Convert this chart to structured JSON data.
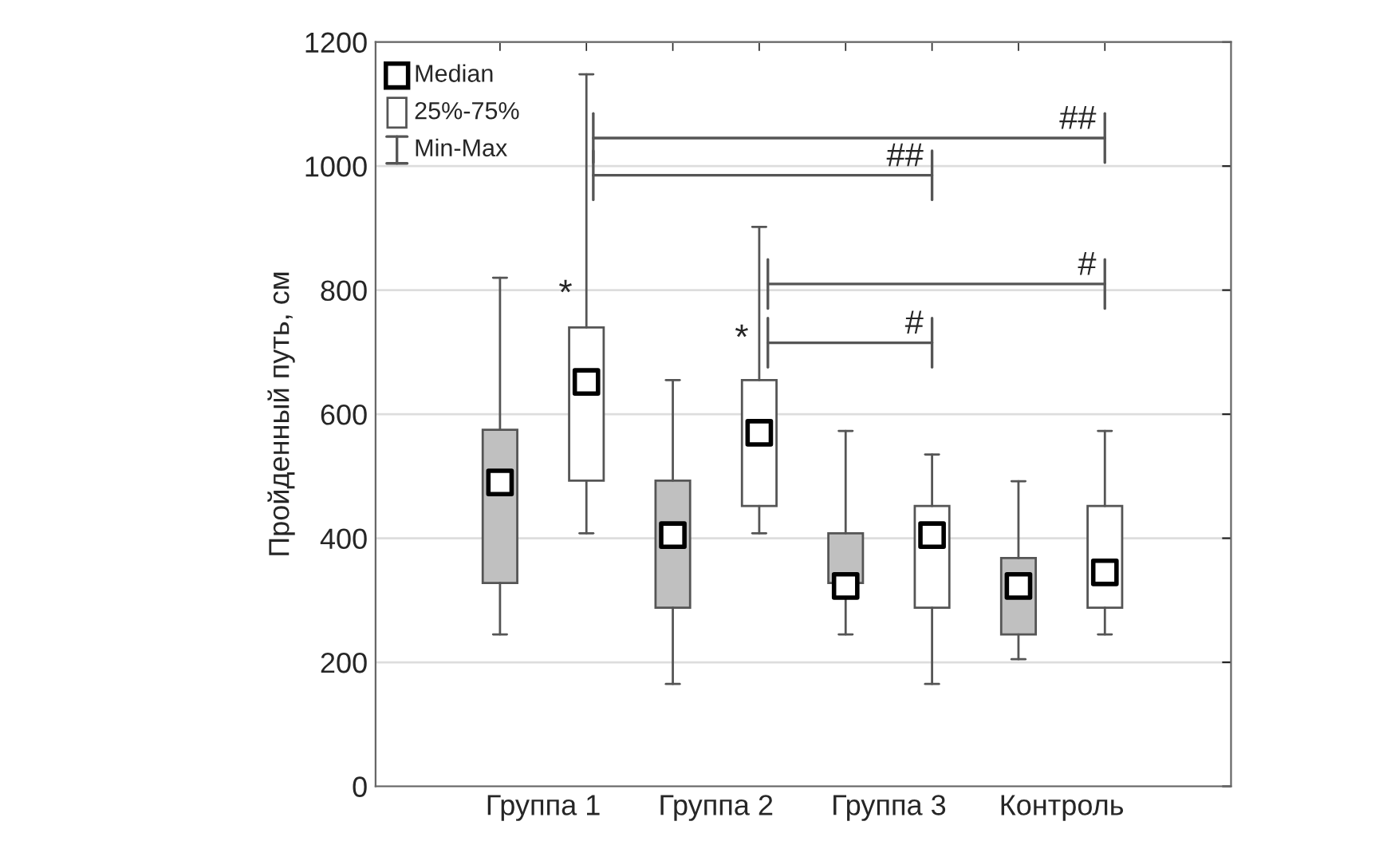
{
  "chart_data": {
    "type": "box",
    "ylabel": "Пройденный путь, см",
    "categories": [
      "Группа 1",
      "Группа 2",
      "Группа 3",
      "Контроль"
    ],
    "series": [
      {
        "color": "#c0c0c0",
        "boxes": [
          {
            "low": 245,
            "q1": 328,
            "median": 490,
            "q3": 575,
            "high": 820
          },
          {
            "low": 165,
            "q1": 288,
            "median": 405,
            "q3": 493,
            "high": 655
          },
          {
            "low": 245,
            "q1": 328,
            "median": 323,
            "q3": 408,
            "high": 573
          },
          {
            "low": 205,
            "q1": 245,
            "median": 323,
            "q3": 368,
            "high": 492
          }
        ]
      },
      {
        "color": "#ffffff",
        "boxes": [
          {
            "low": 408,
            "q1": 493,
            "median": 652,
            "q3": 740,
            "high": 1148
          },
          {
            "low": 408,
            "q1": 452,
            "median": 570,
            "q3": 655,
            "high": 902
          },
          {
            "low": 165,
            "q1": 288,
            "median": 405,
            "q3": 452,
            "high": 535
          },
          {
            "low": 245,
            "q1": 288,
            "median": 345,
            "q3": 452,
            "high": 573
          }
        ]
      }
    ],
    "ylim": [
      0,
      1200
    ],
    "yticks": [
      0,
      200,
      400,
      600,
      800,
      1000,
      1200
    ],
    "grid": "y",
    "marker": "square",
    "annotations": [
      "Median",
      "25%-75%",
      "Min-Max",
      "*",
      "##",
      "##",
      "*",
      "#",
      "#"
    ]
  }
}
